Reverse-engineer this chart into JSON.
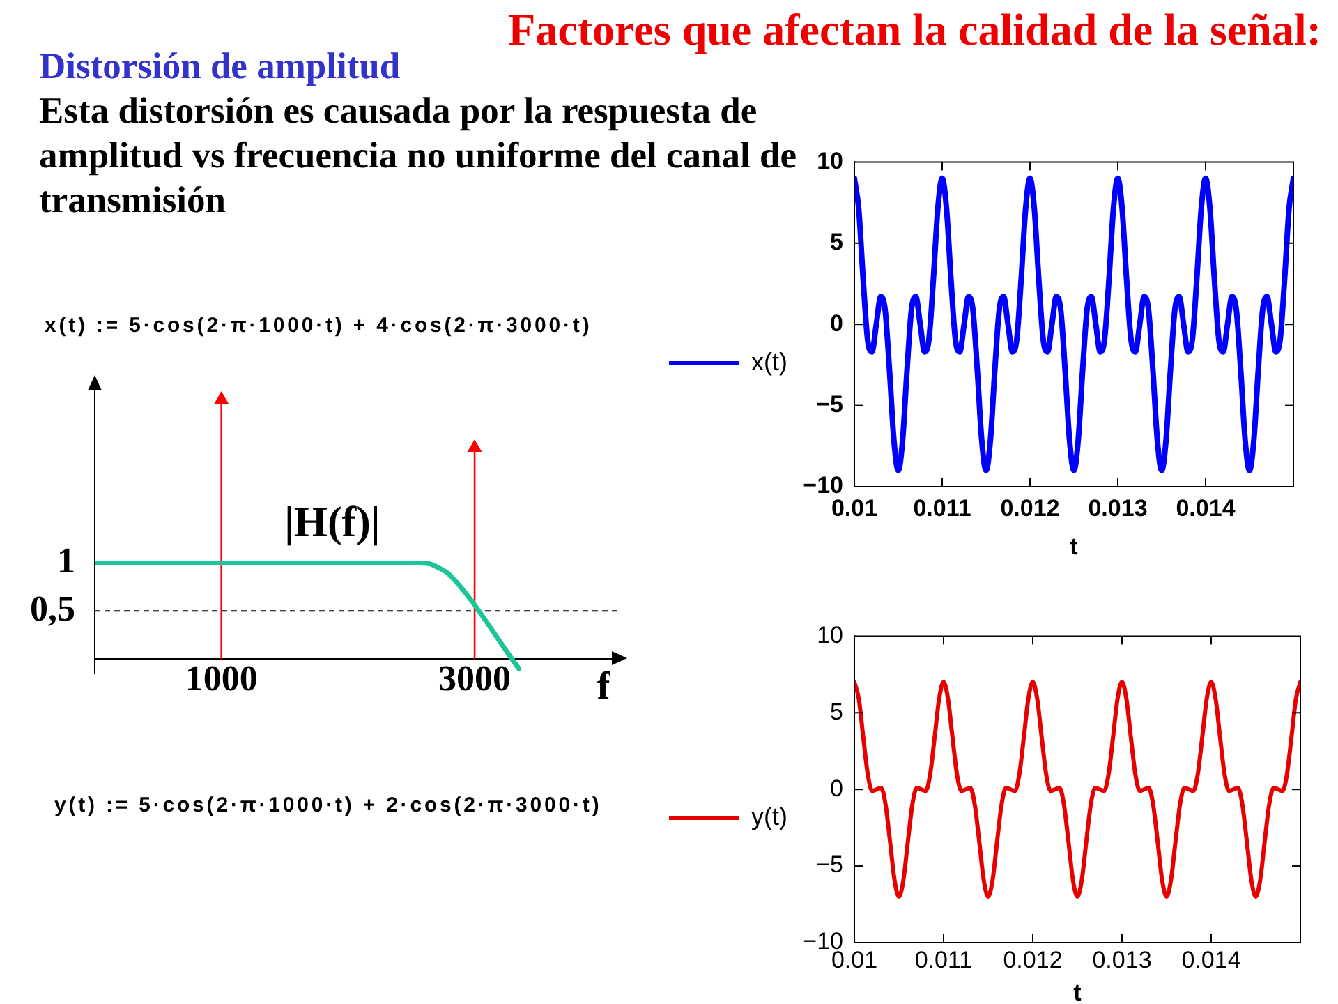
{
  "chart_data": [
    {
      "type": "line",
      "subtitle": "Distorsión de amplitud",
      "xlabel": "f",
      "annotations": [
        "Esta distorsión es causada por la respuesta de amplitud vs frecuencia no uniforme del canal de transmisión",
        "x(t) := 5·cos(2·π·1000·t) + 4·cos(2·π·3000·t)",
        "y(t) := 5·cos(2·π·1000·t) + 2·cos(2·π·3000·t)"
      ],
      "series": [
        {
          "name": "|H(f)|",
          "color": "#1ec59a",
          "x": [
            0,
            2550,
            2650,
            2700,
            2800,
            3350
          ],
          "values": [
            1,
            1,
            0.99,
            0.96,
            0.88,
            -0.1
          ]
        },
        {
          "type": "lollipop",
          "color": "#ff0000",
          "marker": "triangle",
          "x": [
            1000,
            3000
          ],
          "values": [
            2.7,
            2.2
          ]
        }
      ],
      "xlim": [
        0,
        4150
      ],
      "xticks": [
        1000,
        3000
      ],
      "ylim": [
        -0.15,
        2.8
      ],
      "yticks": [
        {
          "value": 0.5,
          "label": "0,5"
        },
        1
      ],
      "ref_lines": [
        {
          "axis": "y",
          "value": 0.5,
          "color": "#000000",
          "line_style": "dashed"
        }
      ]
    },
    {
      "type": "line",
      "title": "Factores que afectan la calidad de la señal:",
      "xlabel": "t",
      "legend": "left",
      "x": [
        0.01,
        0.01005,
        0.0101,
        0.01015,
        0.0102,
        0.01025,
        0.0103,
        0.01035,
        0.0104,
        0.01045,
        0.0105,
        0.01055,
        0.0106,
        0.01065,
        0.0107,
        0.01075,
        0.0108,
        0.01085,
        0.0109,
        0.01095,
        0.011,
        0.01105,
        0.0111,
        0.01115,
        0.0112,
        0.01125,
        0.0113,
        0.01135,
        0.0114,
        0.01145,
        0.0115,
        0.01155,
        0.0116,
        0.01165,
        0.0117,
        0.01175,
        0.0118,
        0.01185,
        0.0119,
        0.01195,
        0.012,
        0.01205,
        0.0121,
        0.01215,
        0.0122,
        0.01225,
        0.0123,
        0.01235,
        0.0124,
        0.01245,
        0.0125,
        0.01255,
        0.0126,
        0.01265,
        0.0127,
        0.01275,
        0.0128,
        0.01285,
        0.0129,
        0.01295,
        0.013,
        0.01305,
        0.0131,
        0.01315,
        0.0132,
        0.01325,
        0.0133,
        0.01335,
        0.0134,
        0.01345,
        0.0135,
        0.01355,
        0.0136,
        0.01365,
        0.0137,
        0.01375,
        0.0138,
        0.01385,
        0.0139,
        0.01395,
        0.014,
        0.01405,
        0.0141,
        0.01415,
        0.0142,
        0.01425,
        0.0143,
        0.01435,
        0.0144,
        0.01445,
        0.0145,
        0.01455,
        0.0146,
        0.01465,
        0.0147,
        0.01475,
        0.0148,
        0.01485,
        0.0149,
        0.01495,
        0.015
      ],
      "series": [
        {
          "name": "x(t)",
          "color": "#0000ff",
          "values": [
            9,
            7.1,
            2.8,
            -0.9,
            -1.7,
            0,
            1.7,
            0.9,
            -2.8,
            -7.1,
            -9,
            -7.1,
            -2.8,
            0.9,
            1.7,
            0,
            -1.7,
            -0.9,
            2.8,
            7.1,
            9,
            7.1,
            2.8,
            -0.9,
            -1.7,
            0,
            1.7,
            0.9,
            -2.8,
            -7.1,
            -9,
            -7.1,
            -2.8,
            0.9,
            1.7,
            0,
            -1.7,
            -0.9,
            2.8,
            7.1,
            9,
            7.1,
            2.8,
            -0.9,
            -1.7,
            0,
            1.7,
            0.9,
            -2.8,
            -7.1,
            -9,
            -7.1,
            -2.8,
            0.9,
            1.7,
            0,
            -1.7,
            -0.9,
            2.8,
            7.1,
            9,
            7.1,
            2.8,
            -0.9,
            -1.7,
            0,
            1.7,
            0.9,
            -2.8,
            -7.1,
            -9,
            -7.1,
            -2.8,
            0.9,
            1.7,
            0,
            -1.7,
            -0.9,
            2.8,
            7.1,
            9,
            7.1,
            2.8,
            -0.9,
            -1.7,
            0,
            1.7,
            0.9,
            -2.8,
            -7.1,
            -9,
            -7.1,
            -2.8,
            0.9,
            1.7,
            0,
            -1.7,
            -0.9,
            2.8,
            7.1,
            9
          ]
        }
      ],
      "xlim": [
        0.01,
        0.015
      ],
      "xticks": [
        0.01,
        0.011,
        0.012,
        0.013,
        0.014
      ],
      "ylim": [
        -10,
        10
      ],
      "yticks": [
        {
          "value": -10,
          "label": "−10"
        },
        {
          "value": -5,
          "label": "−5"
        },
        0,
        5,
        10
      ]
    },
    {
      "type": "line",
      "xlabel": "t",
      "legend": "left",
      "x": [
        0.01,
        0.01005,
        0.0101,
        0.01015,
        0.0102,
        0.01025,
        0.0103,
        0.01035,
        0.0104,
        0.01045,
        0.0105,
        0.01055,
        0.0106,
        0.01065,
        0.0107,
        0.01075,
        0.0108,
        0.01085,
        0.0109,
        0.01095,
        0.011,
        0.01105,
        0.0111,
        0.01115,
        0.0112,
        0.01125,
        0.0113,
        0.01135,
        0.0114,
        0.01145,
        0.0115,
        0.01155,
        0.0116,
        0.01165,
        0.0117,
        0.01175,
        0.0118,
        0.01185,
        0.0119,
        0.01195,
        0.012,
        0.01205,
        0.0121,
        0.01215,
        0.0122,
        0.01225,
        0.0123,
        0.01235,
        0.0124,
        0.01245,
        0.0125,
        0.01255,
        0.0126,
        0.01265,
        0.0127,
        0.01275,
        0.0128,
        0.01285,
        0.0129,
        0.01295,
        0.013,
        0.01305,
        0.0131,
        0.01315,
        0.0132,
        0.01325,
        0.0133,
        0.01335,
        0.0134,
        0.01345,
        0.0135,
        0.01355,
        0.0136,
        0.01365,
        0.0137,
        0.01375,
        0.0138,
        0.01385,
        0.0139,
        0.01395,
        0.014,
        0.01405,
        0.0141,
        0.01415,
        0.0142,
        0.01425,
        0.0143,
        0.01435,
        0.0144,
        0.01445,
        0.0145,
        0.01455,
        0.0146,
        0.01465,
        0.0147,
        0.01475,
        0.0148,
        0.01485,
        0.0149,
        0.01495,
        0.015
      ],
      "series": [
        {
          "name": "y(t)",
          "color": "#e60000",
          "values": [
            7,
            5.9,
            3.4,
            1,
            -0.1,
            0,
            0.1,
            -1,
            -3.4,
            -5.9,
            -7,
            -5.9,
            -3.4,
            -1,
            0.1,
            0,
            -0.1,
            1,
            3.4,
            5.9,
            7,
            5.9,
            3.4,
            1,
            -0.1,
            0,
            0.1,
            -1,
            -3.4,
            -5.9,
            -7,
            -5.9,
            -3.4,
            -1,
            0.1,
            0,
            -0.1,
            1,
            3.4,
            5.9,
            7,
            5.9,
            3.4,
            1,
            -0.1,
            0,
            0.1,
            -1,
            -3.4,
            -5.9,
            -7,
            -5.9,
            -3.4,
            -1,
            0.1,
            0,
            -0.1,
            1,
            3.4,
            5.9,
            7,
            5.9,
            3.4,
            1,
            -0.1,
            0,
            0.1,
            -1,
            -3.4,
            -5.9,
            -7,
            -5.9,
            -3.4,
            -1,
            0.1,
            0,
            -0.1,
            1,
            3.4,
            5.9,
            7,
            5.9,
            3.4,
            1,
            -0.1,
            0,
            0.1,
            -1,
            -3.4,
            -5.9,
            -7,
            -5.9,
            -3.4,
            -1,
            0.1,
            0,
            -0.1,
            1,
            3.4,
            5.9,
            7
          ]
        }
      ],
      "xlim": [
        0.01,
        0.015
      ],
      "xticks": [
        0.01,
        0.011,
        0.012,
        0.013,
        0.014
      ],
      "ylim": [
        -10,
        10
      ],
      "yticks": [
        {
          "value": -10,
          "label": "−10"
        },
        {
          "value": -5,
          "label": "−5"
        },
        0,
        5,
        10
      ]
    }
  ]
}
